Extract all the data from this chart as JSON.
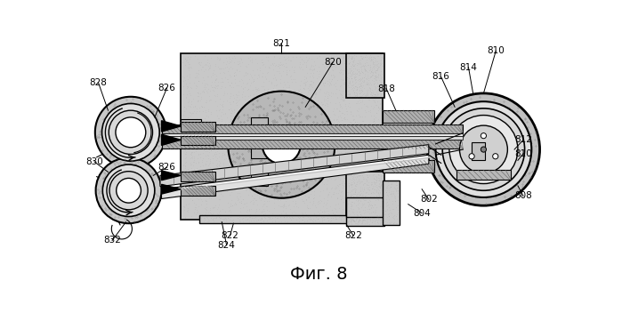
{
  "fig_label": "Фиг. 8",
  "bg_color": "#ffffff",
  "body_speckle_color": "#b0b0b0",
  "body_fill": "#c8c8c8",
  "disk_fill": "#b8b8b8",
  "wheel_fill": "#d0d0d0",
  "hatch_color": "#808080"
}
